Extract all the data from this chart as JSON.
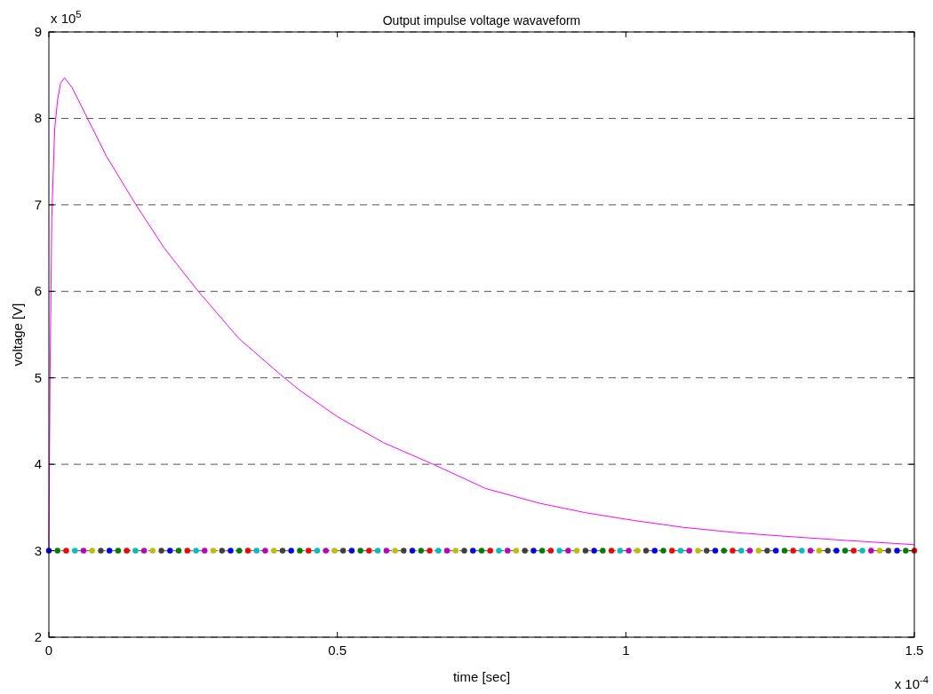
{
  "chart_data": {
    "type": "line",
    "title": "Output impulse voltage wavaveform",
    "xlabel": "time [sec]",
    "ylabel": "voltage [V]",
    "annotations": [
      "x 10$^{5}$",
      "x 10$^{-4}$"
    ],
    "xlim": [
      0,
      1.5
    ],
    "xticks": [
      0,
      0.5,
      1,
      1.5
    ],
    "ylim": [
      2,
      9
    ],
    "yticks": [
      2,
      3,
      4,
      5,
      6,
      7,
      8,
      9
    ],
    "grid": "y",
    "line_style": "solid",
    "series": [
      {
        "color": "#ff00ff",
        "marker": "none",
        "x": [
          0,
          0.002,
          0.005,
          0.01,
          0.015,
          0.0205,
          0.027,
          0.04,
          0.067,
          0.1,
          0.151,
          0.2,
          0.259,
          0.33,
          0.408,
          0.434,
          0.5,
          0.58,
          0.666,
          0.757,
          0.85,
          0.93,
          1.014,
          1.1,
          1.19,
          1.27,
          1.38,
          1.5
        ],
        "values": [
          3.0,
          5.0,
          6.84,
          7.87,
          8.21,
          8.41,
          8.47,
          8.36,
          8.0,
          7.56,
          7.0,
          6.5,
          6.0,
          5.45,
          5.0,
          4.86,
          4.55,
          4.25,
          4.0,
          3.72,
          3.55,
          3.44,
          3.35,
          3.27,
          3.21,
          3.17,
          3.12,
          3.07
        ]
      },
      {
        "type": "scatter",
        "marker": "circle",
        "x": [
          0,
          0.015,
          0.03,
          0.045,
          0.06,
          0.075,
          0.09,
          0.105,
          0.12,
          0.135,
          0.15,
          0.165,
          0.18,
          0.195,
          0.21,
          0.225,
          0.24,
          0.255,
          0.27,
          0.285,
          0.3,
          0.315,
          0.33,
          0.345,
          0.36,
          0.375,
          0.39,
          0.405,
          0.42,
          0.435,
          0.45,
          0.465,
          0.48,
          0.495,
          0.51,
          0.525,
          0.54,
          0.555,
          0.57,
          0.585,
          0.6,
          0.615,
          0.63,
          0.645,
          0.66,
          0.675,
          0.69,
          0.705,
          0.72,
          0.735,
          0.75,
          0.765,
          0.78,
          0.795,
          0.81,
          0.825,
          0.84,
          0.855,
          0.87,
          0.885,
          0.9,
          0.915,
          0.93,
          0.945,
          0.96,
          0.975,
          0.99,
          1.005,
          1.02,
          1.035,
          1.05,
          1.065,
          1.08,
          1.095,
          1.11,
          1.125,
          1.14,
          1.155,
          1.17,
          1.185,
          1.2,
          1.215,
          1.23,
          1.245,
          1.26,
          1.275,
          1.29,
          1.305,
          1.32,
          1.335,
          1.35,
          1.365,
          1.38,
          1.395,
          1.41,
          1.425,
          1.44,
          1.455,
          1.47,
          1.485,
          1.5
        ],
        "values": [
          3,
          3,
          3,
          3,
          3,
          3,
          3,
          3,
          3,
          3,
          3,
          3,
          3,
          3,
          3,
          3,
          3,
          3,
          3,
          3,
          3,
          3,
          3,
          3,
          3,
          3,
          3,
          3,
          3,
          3,
          3,
          3,
          3,
          3,
          3,
          3,
          3,
          3,
          3,
          3,
          3,
          3,
          3,
          3,
          3,
          3,
          3,
          3,
          3,
          3,
          3,
          3,
          3,
          3,
          3,
          3,
          3,
          3,
          3,
          3,
          3,
          3,
          3,
          3,
          3,
          3,
          3,
          3,
          3,
          3,
          3,
          3,
          3,
          3,
          3,
          3,
          3,
          3,
          3,
          3,
          3,
          3,
          3,
          3,
          3,
          3,
          3,
          3,
          3,
          3,
          3,
          3,
          3,
          3,
          3,
          3,
          3,
          3,
          3,
          3,
          3
        ],
        "colors": [
          "#0000ff",
          "#008000",
          "#ff0000",
          "#00bfbf",
          "#bf00bf",
          "#bfbf00",
          "#404040",
          "#0000ff",
          "#008000",
          "#ff0000",
          "#00bfbf",
          "#bf00bf",
          "#bfbf00",
          "#404040",
          "#0000ff",
          "#008000",
          "#ff0000",
          "#00bfbf",
          "#bf00bf",
          "#bfbf00",
          "#404040",
          "#0000ff",
          "#008000",
          "#ff0000",
          "#00bfbf",
          "#bf00bf",
          "#bfbf00",
          "#404040",
          "#0000ff",
          "#008000",
          "#ff0000",
          "#00bfbf",
          "#bf00bf",
          "#bfbf00",
          "#404040",
          "#0000ff",
          "#008000",
          "#ff0000",
          "#00bfbf",
          "#bf00bf",
          "#bfbf00",
          "#404040",
          "#0000ff",
          "#008000",
          "#ff0000",
          "#00bfbf",
          "#bf00bf",
          "#bfbf00",
          "#404040",
          "#0000ff",
          "#008000",
          "#ff0000",
          "#00bfbf",
          "#bf00bf",
          "#bfbf00",
          "#404040",
          "#0000ff",
          "#008000",
          "#ff0000",
          "#00bfbf",
          "#bf00bf",
          "#bfbf00",
          "#404040",
          "#0000ff",
          "#008000",
          "#ff0000",
          "#00bfbf",
          "#bf00bf",
          "#bfbf00",
          "#404040",
          "#0000ff",
          "#008000",
          "#ff0000",
          "#00bfbf",
          "#bf00bf",
          "#bfbf00",
          "#404040",
          "#0000ff",
          "#008000",
          "#ff0000",
          "#00bfbf",
          "#bf00bf",
          "#bfbf00",
          "#404040",
          "#0000ff",
          "#008000",
          "#ff0000",
          "#00bfbf",
          "#bf00bf",
          "#bfbf00",
          "#404040",
          "#0000ff",
          "#008000",
          "#ff0000",
          "#00bfbf",
          "#bf00bf",
          "#bfbf00",
          "#404040",
          "#0000ff",
          "#008000",
          "#ff0000"
        ]
      }
    ]
  }
}
